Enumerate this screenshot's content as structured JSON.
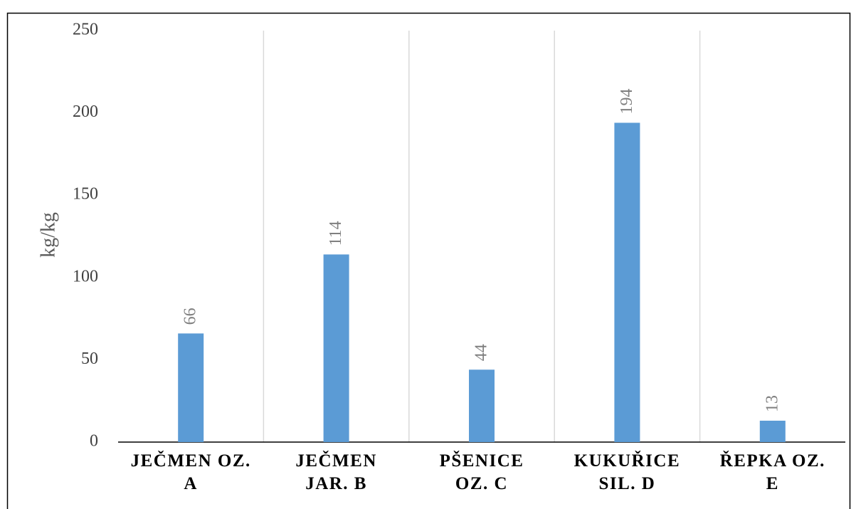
{
  "chart_data": {
    "type": "bar",
    "categories": [
      "JEČMEN OZ.\nA",
      "JEČMEN\nJAR. B",
      "PŠENICE\nOZ. C",
      "KUKUŘICE\nSIL. D",
      "ŘEPKA OZ.\nE"
    ],
    "values": [
      66,
      114,
      44,
      194,
      13
    ],
    "color": "#5b9bd5",
    "y_label": "kg/kg",
    "ylim": [
      0,
      250
    ],
    "yticks": [
      0,
      50,
      100,
      150,
      200,
      250
    ]
  }
}
